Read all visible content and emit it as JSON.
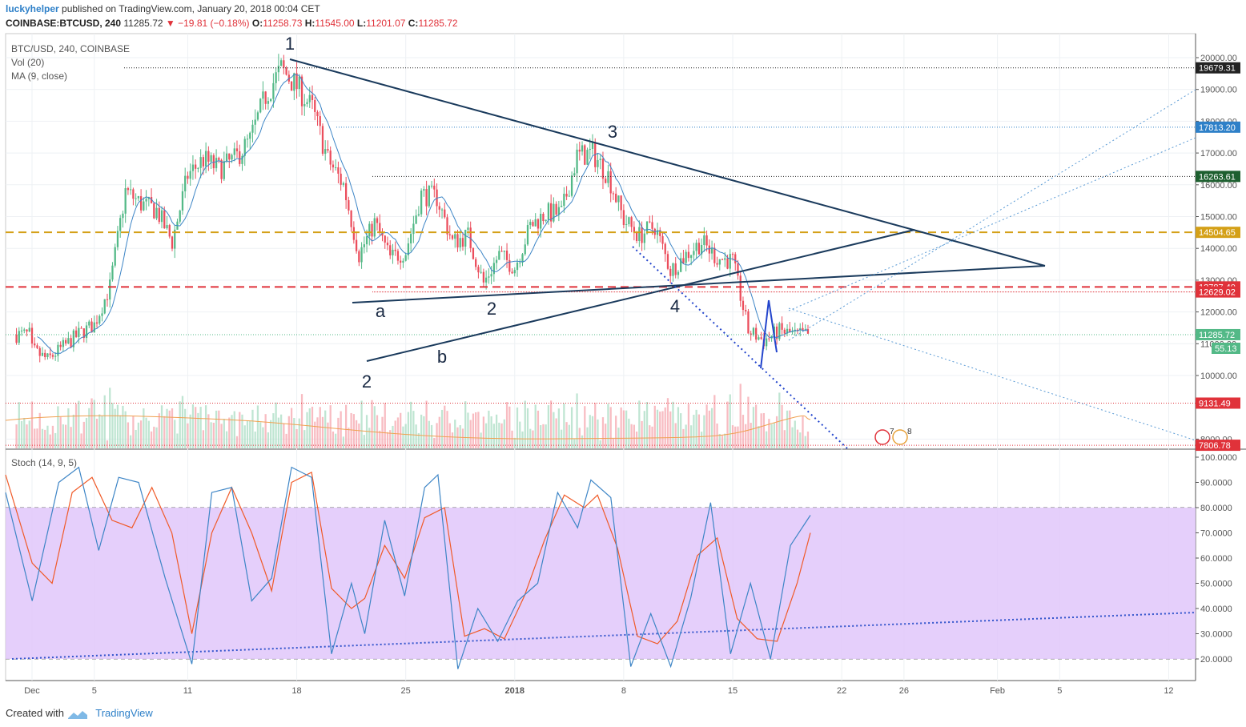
{
  "header": {
    "author": "luckyhelper",
    "published": "published on TradingView.com, January 20, 2018 00:04 CET"
  },
  "infobar": {
    "symbol": "COINBASE:BTCUSD, 240",
    "last": "11285.72",
    "change": "−19.81 (−0.18%)",
    "o_label": "O:",
    "o": "11258.73",
    "h_label": "H:",
    "h": "11545.00",
    "l_label": "L:",
    "l": "11201.07",
    "c_label": "C:",
    "c": "11285.72"
  },
  "legend": {
    "title": "BTC/USD, 240, COINBASE",
    "vol": "Vol (20)",
    "ma": "MA (9, close)",
    "stoch": "Stoch (14, 9, 5)"
  },
  "footer": {
    "created": "Created with",
    "brand": "TradingView"
  },
  "colors": {
    "up": "#53b987",
    "down": "#eb4d5c",
    "wave_line": "#1a3a5c",
    "stoch_k": "#3d85c6",
    "stoch_d": "#f05a28",
    "stoch_band": "#e1c7fa",
    "ma": "#3d85c6",
    "orange_level": "#d4a017",
    "red_level": "#e0323a"
  },
  "chart_data": [
    {
      "type": "candlestick",
      "title": "BTC/USD, 240, COINBASE",
      "x_ticks": [
        "Dec",
        "5",
        "11",
        "18",
        "25",
        "2018",
        "8",
        "15",
        "22",
        "26",
        "Feb",
        "5",
        "12"
      ],
      "y_ticks": [
        "20000.00",
        "19000.00",
        "18000.00",
        "17000.00",
        "16000.00",
        "15000.00",
        "14000.00",
        "13000.00",
        "12000.00",
        "11000.00",
        "10000.00",
        "8000.00"
      ],
      "ylim": [
        7700,
        20400
      ],
      "price_path": [
        [
          "2017-12-01",
          10800
        ],
        [
          "2017-12-02",
          10500
        ],
        [
          "2017-12-03",
          10900
        ],
        [
          "2017-12-04",
          11300
        ],
        [
          "2017-12-05",
          11600
        ],
        [
          "2017-12-06",
          12800
        ],
        [
          "2017-12-07",
          15800
        ],
        [
          "2017-12-08",
          15400
        ],
        [
          "2017-12-09",
          15200
        ],
        [
          "2017-12-10",
          14200
        ],
        [
          "2017-12-11",
          16300
        ],
        [
          "2017-12-12",
          16800
        ],
        [
          "2017-12-13",
          16500
        ],
        [
          "2017-12-14",
          16800
        ],
        [
          "2017-12-15",
          17400
        ],
        [
          "2017-12-16",
          18800
        ],
        [
          "2017-12-17",
          19650
        ],
        [
          "2017-12-18",
          19100
        ],
        [
          "2017-12-19",
          18400
        ],
        [
          "2017-12-20",
          16800
        ],
        [
          "2017-12-21",
          16000
        ],
        [
          "2017-12-22",
          13800
        ],
        [
          "2017-12-23",
          14800
        ],
        [
          "2017-12-24",
          13700
        ],
        [
          "2017-12-25",
          13900
        ],
        [
          "2017-12-26",
          15700
        ],
        [
          "2017-12-27",
          15600
        ],
        [
          "2017-12-28",
          14200
        ],
        [
          "2017-12-29",
          14400
        ],
        [
          "2017-12-30",
          12900
        ],
        [
          "2017-12-31",
          13800
        ],
        [
          "2018-01-01",
          13400
        ],
        [
          "2018-01-02",
          14700
        ],
        [
          "2018-01-03",
          15100
        ],
        [
          "2018-01-04",
          15100
        ],
        [
          "2018-01-05",
          16900
        ],
        [
          "2018-01-06",
          17000
        ],
        [
          "2018-01-07",
          16300
        ],
        [
          "2018-01-08",
          14900
        ],
        [
          "2018-01-09",
          14400
        ],
        [
          "2018-01-10",
          14700
        ],
        [
          "2018-01-11",
          13300
        ],
        [
          "2018-01-12",
          13800
        ],
        [
          "2018-01-13",
          14200
        ],
        [
          "2018-01-14",
          13700
        ],
        [
          "2018-01-15",
          13600
        ],
        [
          "2018-01-16",
          11400
        ],
        [
          "2018-01-17",
          11100
        ],
        [
          "2018-01-18",
          11400
        ],
        [
          "2018-01-19",
          11285
        ]
      ],
      "price_levels": [
        19679.31,
        17813.2,
        16263.61,
        14504.65,
        12787.4,
        12629.02,
        11285.72,
        9131.49,
        7806.78
      ],
      "price_level_labels": [
        "19679.31",
        "17813.20",
        "16263.61",
        "14504.65",
        "12787.40",
        "12629.02",
        "11285.72",
        "9131.49",
        "7806.78"
      ],
      "volume_label": "55.13",
      "wave_labels": [
        "1",
        "2",
        "3",
        "4",
        "2",
        "a",
        "b"
      ],
      "event_badge_labels": [
        "7",
        "8"
      ]
    },
    {
      "type": "line",
      "title": "Stoch (14, 9, 5)",
      "y_ticks": [
        "100.0000",
        "90.0000",
        "80.0000",
        "70.0000",
        "60.0000",
        "50.0000",
        "40.0000",
        "30.0000",
        "20.0000"
      ],
      "ylim": [
        15,
        100
      ],
      "bands": [
        20,
        80
      ],
      "k_path": [
        [
          0,
          86
        ],
        [
          4,
          43
        ],
        [
          8,
          90
        ],
        [
          11,
          96
        ],
        [
          14,
          63
        ],
        [
          17,
          92
        ],
        [
          20,
          90
        ],
        [
          24,
          52
        ],
        [
          28,
          18
        ],
        [
          31,
          86
        ],
        [
          34,
          88
        ],
        [
          37,
          43
        ],
        [
          40,
          52
        ],
        [
          43,
          96
        ],
        [
          46,
          92
        ],
        [
          49,
          22
        ],
        [
          52,
          50
        ],
        [
          54,
          30
        ],
        [
          57,
          75
        ],
        [
          60,
          45
        ],
        [
          63,
          88
        ],
        [
          65,
          93
        ],
        [
          68,
          16
        ],
        [
          71,
          40
        ],
        [
          74,
          27
        ],
        [
          77,
          43
        ],
        [
          80,
          50
        ],
        [
          83,
          86
        ],
        [
          86,
          72
        ],
        [
          88,
          91
        ],
        [
          91,
          84
        ],
        [
          94,
          17
        ],
        [
          97,
          38
        ],
        [
          100,
          17
        ],
        [
          103,
          44
        ],
        [
          106,
          82
        ],
        [
          109,
          22
        ],
        [
          112,
          50
        ],
        [
          115,
          20
        ],
        [
          118,
          65
        ],
        [
          121,
          77
        ]
      ],
      "d_path": [
        [
          0,
          93
        ],
        [
          4,
          58
        ],
        [
          7,
          50
        ],
        [
          10,
          86
        ],
        [
          13,
          92
        ],
        [
          16,
          75
        ],
        [
          19,
          72
        ],
        [
          22,
          88
        ],
        [
          25,
          70
        ],
        [
          28,
          30
        ],
        [
          31,
          70
        ],
        [
          34,
          88
        ],
        [
          37,
          70
        ],
        [
          40,
          47
        ],
        [
          43,
          90
        ],
        [
          46,
          94
        ],
        [
          49,
          48
        ],
        [
          52,
          40
        ],
        [
          54,
          44
        ],
        [
          57,
          65
        ],
        [
          60,
          52
        ],
        [
          63,
          76
        ],
        [
          66,
          80
        ],
        [
          69,
          29
        ],
        [
          72,
          32
        ],
        [
          75,
          28
        ],
        [
          78,
          45
        ],
        [
          81,
          67
        ],
        [
          84,
          85
        ],
        [
          87,
          80
        ],
        [
          89,
          85
        ],
        [
          92,
          64
        ],
        [
          95,
          29
        ],
        [
          98,
          26
        ],
        [
          101,
          35
        ],
        [
          104,
          61
        ],
        [
          107,
          68
        ],
        [
          110,
          36
        ],
        [
          113,
          28
        ],
        [
          116,
          27
        ],
        [
          119,
          50
        ],
        [
          121,
          70
        ]
      ]
    }
  ]
}
